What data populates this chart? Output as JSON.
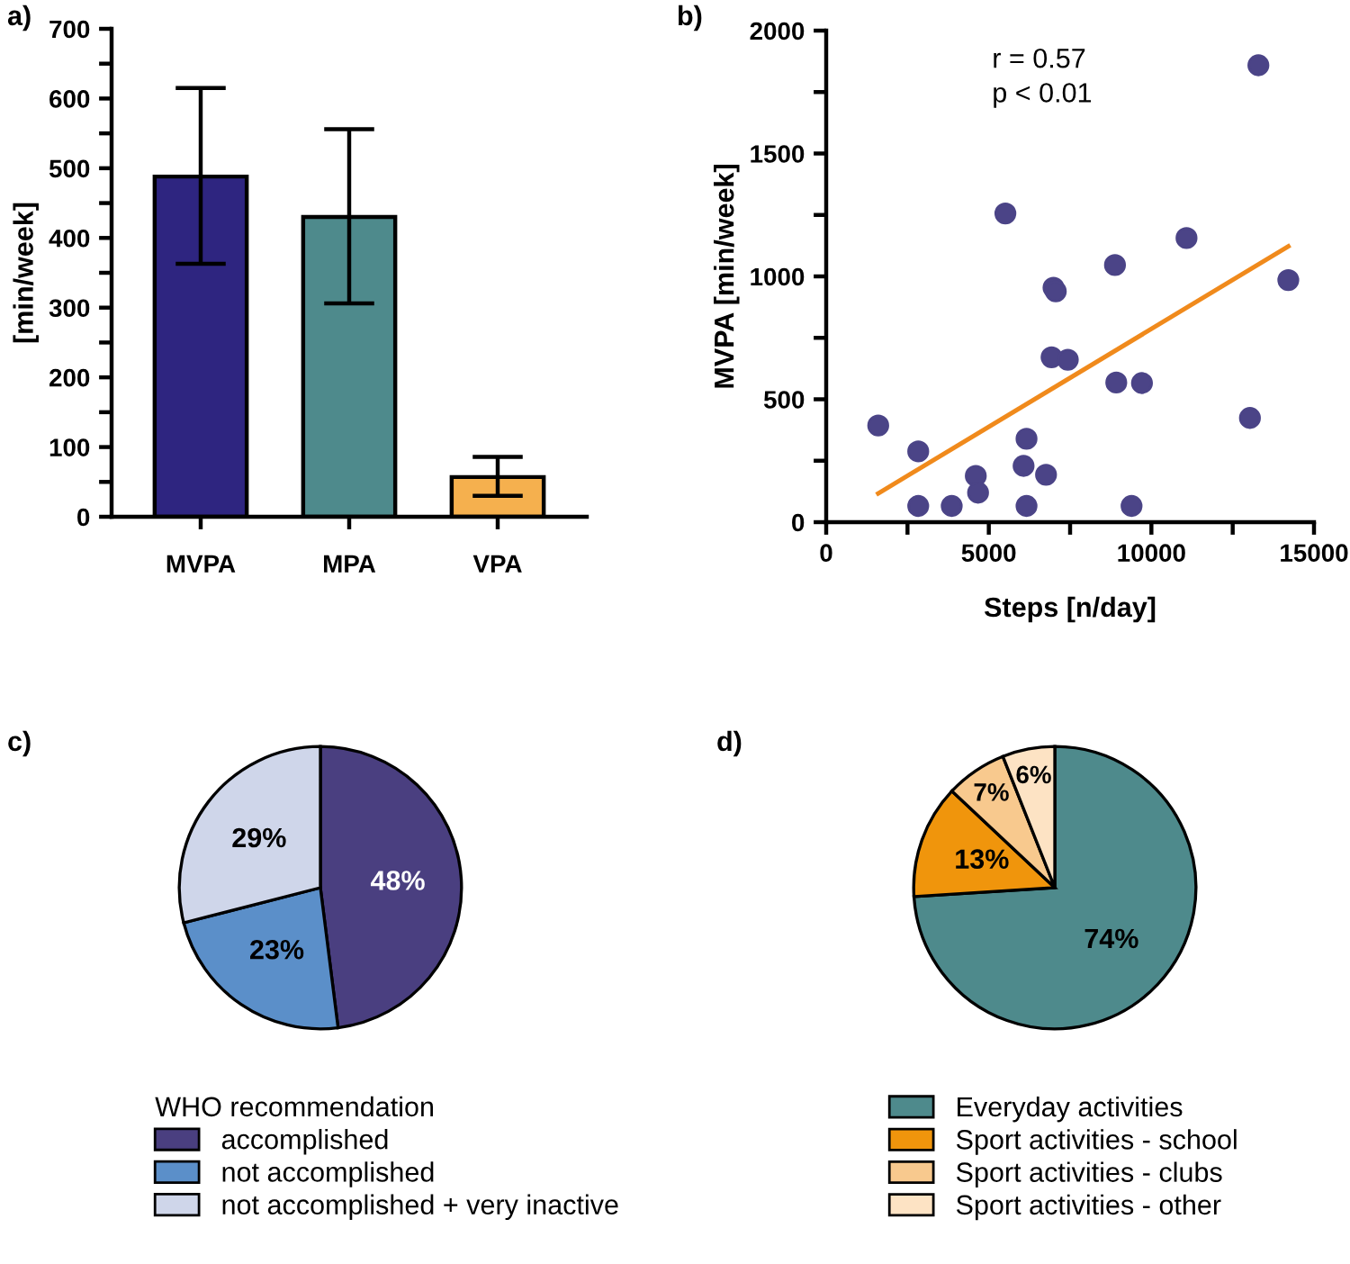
{
  "chart_data": [
    {
      "type": "bar",
      "title": "a)",
      "ylabel": "[min/week]",
      "categories": [
        "MVPA",
        "MPA",
        "VPA"
      ],
      "values": [
        488,
        430,
        57
      ],
      "colors": [
        "#2e2580",
        "#4e8a8c",
        "#f5b04e"
      ],
      "errors": [
        [
          363,
          615
        ],
        [
          306,
          556
        ],
        [
          30,
          86
        ]
      ],
      "ylim": [
        0,
        700
      ],
      "yticks": [
        0,
        {
          "value": 50,
          "label": null
        },
        100,
        {
          "value": 150,
          "label": null
        },
        200,
        {
          "value": 250,
          "label": null
        },
        300,
        {
          "value": 350,
          "label": null
        },
        400,
        {
          "value": 450,
          "label": null
        },
        500,
        {
          "value": 550,
          "label": null
        },
        600,
        {
          "value": 650,
          "label": null
        },
        700
      ]
    },
    {
      "type": "scatter",
      "title": "b)",
      "xlabel": "Steps [n/day]",
      "ylabel": "MVPA [min/week]",
      "annotations": [
        "r = 0.57",
        "p < 0.01"
      ],
      "series": [
        {
          "type": "scatter",
          "marker": "circle",
          "color": "#4b4487",
          "x": [
            1600,
            2830,
            2830,
            3860,
            4600,
            4670,
            5510,
            6070,
            6160,
            6160,
            6760,
            6930,
            6990,
            7060,
            7430,
            8880,
            8920,
            9390,
            9710,
            11080,
            13030,
            13290,
            14210
          ],
          "values": [
            393,
            288,
            66,
            66,
            188,
            120,
            1256,
            229,
            339,
            66,
            193,
            671,
            954,
            939,
            661,
            1046,
            568,
            66,
            566,
            1156,
            424,
            1859,
            985
          ]
        },
        {
          "type": "line",
          "marker": "none",
          "color": "#f08a1c",
          "x": [
            1600,
            14210
          ],
          "values": [
            117,
            1122
          ]
        }
      ],
      "xlim": [
        0,
        15000
      ],
      "xticks": [
        0,
        {
          "value": 2500,
          "label": null
        },
        5000,
        {
          "value": 7500,
          "label": null
        },
        10000,
        {
          "value": 12500,
          "label": null
        },
        15000
      ],
      "ylim": [
        0,
        2000
      ],
      "yticks": [
        0,
        {
          "value": 250,
          "label": null
        },
        500,
        {
          "value": 750,
          "label": null
        },
        1000,
        {
          "value": 1250,
          "label": null
        },
        1500,
        {
          "value": 1750,
          "label": null
        },
        2000
      ]
    },
    {
      "type": "pie",
      "title": "c)",
      "legend_title": "WHO recommendation",
      "legend": "bottom",
      "categories": [
        "accomplished",
        "not accomplished",
        "not accomplished + very inactive"
      ],
      "values": [
        48,
        23,
        29
      ],
      "colors": [
        "#4a3f80",
        "#5b8fc9",
        "#cfd6ea"
      ],
      "value_labels": [
        "48%",
        "23%",
        "29%"
      ]
    },
    {
      "type": "pie",
      "title": "d)",
      "legend": "bottom",
      "categories": [
        "Everyday activities",
        "Sport activities - school",
        "Sport activities - clubs",
        "Sport activities - other"
      ],
      "values": [
        74,
        13,
        7,
        6
      ],
      "colors": [
        "#4e8a8c",
        "#f0950c",
        "#f8c98e",
        "#fde3c4"
      ],
      "value_labels": [
        "74%",
        "13%",
        "7%",
        "6%"
      ]
    }
  ]
}
